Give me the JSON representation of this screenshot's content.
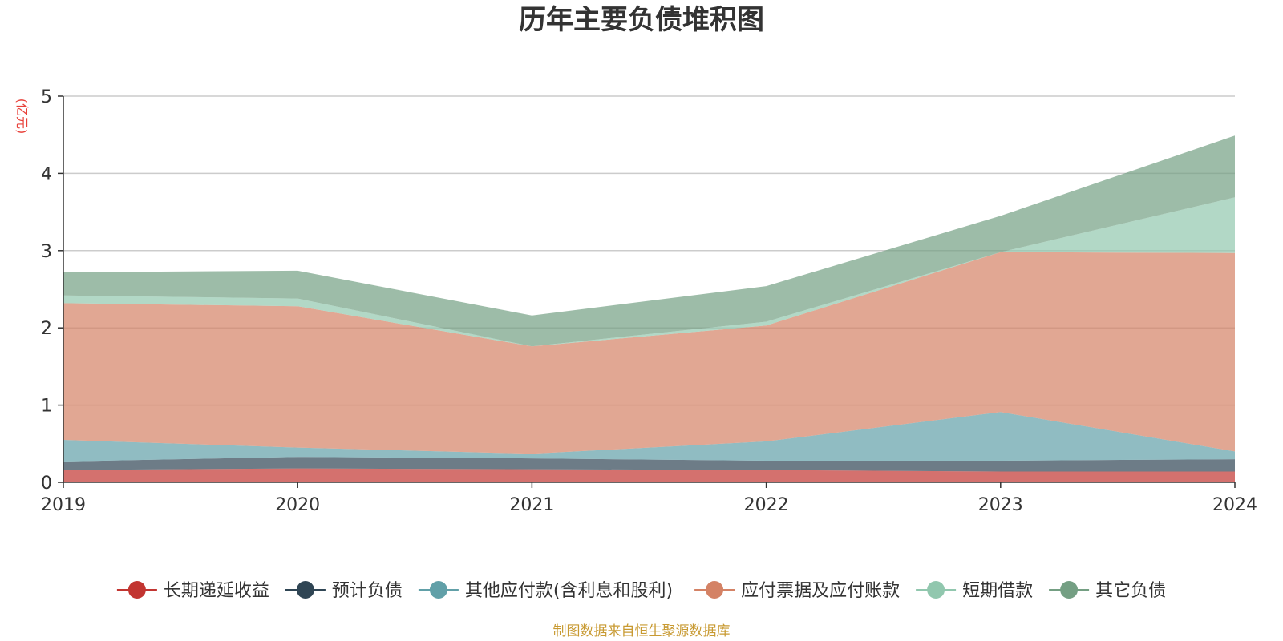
{
  "chart_data": {
    "type": "area",
    "stacked": true,
    "title": "历年主要负债堆积图",
    "unit": "(亿元)",
    "x": [
      "2019",
      "2020",
      "2021",
      "2022",
      "2023",
      "2024"
    ],
    "ylim": [
      0,
      5
    ],
    "yticks": [
      "0",
      "1",
      "2",
      "3",
      "4",
      "5"
    ],
    "grid": true,
    "legend_position": "bottom",
    "series": [
      {
        "name": "长期递延收益",
        "color": "#c23531",
        "values": [
          0.16,
          0.18,
          0.17,
          0.16,
          0.14,
          0.14
        ]
      },
      {
        "name": "预计负债",
        "color": "#2f4554",
        "values": [
          0.11,
          0.15,
          0.14,
          0.12,
          0.14,
          0.16
        ]
      },
      {
        "name": "其他应付款(含利息和股利)",
        "color": "#61a0a8",
        "values": [
          0.28,
          0.12,
          0.06,
          0.25,
          0.63,
          0.1
        ]
      },
      {
        "name": "应付票据及应付账款",
        "color": "#d48265",
        "values": [
          1.77,
          1.83,
          1.39,
          1.5,
          2.07,
          2.57
        ]
      },
      {
        "name": "短期借款",
        "color": "#91c7ae",
        "values": [
          0.1,
          0.1,
          0.0,
          0.05,
          0.0,
          0.72
        ]
      },
      {
        "name": "其它负债",
        "color": "#749f83",
        "values": [
          0.3,
          0.36,
          0.4,
          0.46,
          0.47,
          0.8
        ]
      }
    ]
  },
  "footer": {
    "source": "制图数据来自恒生聚源数据库"
  }
}
